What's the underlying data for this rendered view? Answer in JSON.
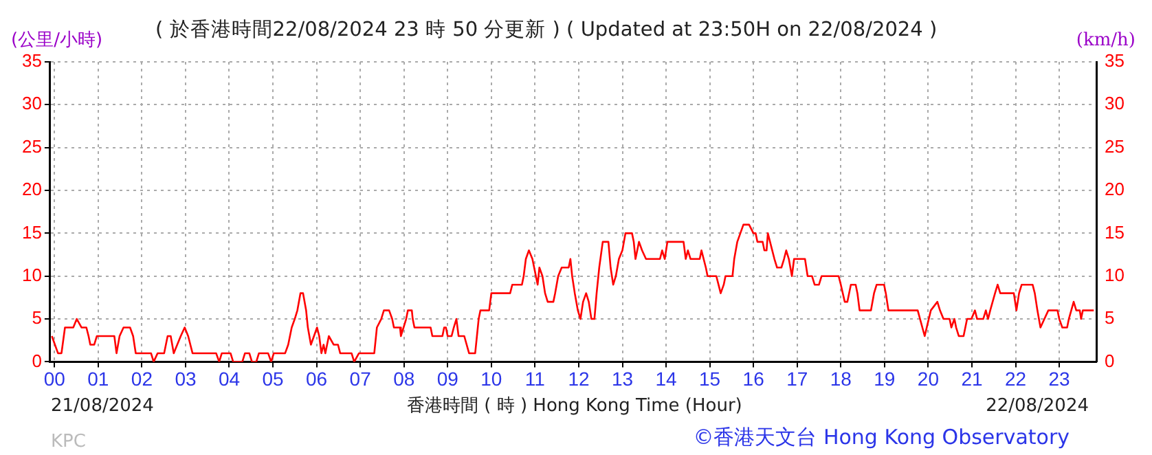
{
  "chart_data": {
    "type": "line",
    "title": "( 於香港時間22/08/2024 23 時 50 分更新 ) ( Updated at 23:50H on 22/08/2024 )",
    "xlabel": "香港時間 ( 時 ) Hong Kong Time (Hour)",
    "ylabel": "(公里/小時)",
    "y2label": "(km/h)",
    "annotations": [
      "21/08/2024",
      "22/08/2024",
      "KPC",
      "©香港天文台 Hong Kong Observatory"
    ],
    "x": [
      -0.06,
      0.08,
      0.16,
      0.24,
      0.43,
      0.51,
      0.62,
      0.73,
      0.78,
      0.82,
      0.91,
      0.97,
      1.37,
      1.42,
      1.49,
      1.58,
      1.73,
      1.8,
      1.86,
      2.21,
      2.27,
      2.36,
      2.51,
      2.59,
      2.66,
      2.73,
      2.89,
      2.98,
      3.06,
      3.16,
      3.7,
      3.77,
      3.83,
      4.03,
      4.09,
      4.3,
      4.36,
      4.46,
      4.52,
      4.62,
      4.68,
      4.89,
      4.96,
      5.02,
      5.28,
      5.35,
      5.43,
      5.5,
      5.56,
      5.63,
      5.69,
      5.76,
      5.8,
      5.87,
      5.94,
      6.01,
      6.06,
      6.11,
      6.16,
      6.2,
      6.28,
      6.39,
      6.49,
      6.54,
      6.8,
      6.86,
      6.97,
      7.32,
      7.38,
      7.48,
      7.54,
      7.66,
      7.73,
      7.77,
      7.91,
      7.93,
      7.99,
      8.05,
      8.09,
      8.18,
      8.2,
      8.24,
      8.61,
      8.65,
      8.88,
      8.92,
      8.96,
      9.0,
      9.09,
      9.14,
      9.2,
      9.25,
      9.38,
      9.49,
      9.63,
      9.67,
      9.71,
      9.75,
      9.95,
      10.0,
      10.43,
      10.48,
      10.7,
      10.74,
      10.79,
      10.86,
      10.94,
      11.02,
      11.06,
      11.1,
      11.17,
      11.23,
      11.29,
      11.42,
      11.46,
      11.53,
      11.61,
      11.77,
      11.81,
      11.85,
      11.91,
      11.98,
      12.04,
      12.1,
      12.17,
      12.23,
      12.29,
      12.36,
      12.41,
      12.47,
      12.55,
      12.68,
      12.73,
      12.79,
      12.85,
      12.92,
      13.0,
      13.07,
      13.22,
      13.26,
      13.3,
      13.38,
      13.45,
      13.54,
      13.86,
      13.91,
      13.97,
      14.03,
      14.4,
      14.45,
      14.5,
      14.56,
      14.77,
      14.81,
      14.91,
      14.95,
      15.15,
      15.2,
      15.25,
      15.32,
      15.36,
      15.52,
      15.56,
      15.63,
      15.7,
      15.77,
      15.9,
      16.0,
      16.05,
      16.09,
      16.21,
      16.25,
      16.3,
      16.33,
      16.38,
      16.43,
      16.48,
      16.54,
      16.64,
      16.7,
      16.75,
      16.81,
      16.88,
      16.93,
      17.18,
      17.24,
      17.34,
      17.4,
      17.5,
      17.56,
      17.95,
      18.0,
      18.09,
      18.15,
      18.23,
      18.34,
      18.38,
      18.43,
      18.69,
      18.76,
      18.82,
      18.99,
      19.03,
      19.09,
      19.76,
      19.92,
      20.06,
      20.21,
      20.27,
      20.35,
      20.49,
      20.53,
      20.6,
      20.64,
      20.7,
      20.81,
      20.89,
      20.99,
      21.07,
      21.12,
      21.26,
      21.32,
      21.37,
      21.42,
      21.53,
      21.59,
      21.65,
      21.96,
      22.02,
      22.08,
      22.14,
      22.39,
      22.44,
      22.5,
      22.57,
      22.66,
      22.75,
      22.96,
      23.0,
      23.07,
      23.18,
      23.22,
      23.33,
      23.39,
      23.47,
      23.5,
      23.54,
      23.79
    ],
    "series": [
      {
        "color": "#ff0000",
        "values": [
          3,
          1,
          1,
          4,
          4,
          5,
          4,
          4,
          3,
          2,
          2,
          3,
          3,
          1,
          3,
          4,
          4,
          3,
          1,
          1,
          0,
          1,
          1,
          3,
          3,
          1,
          3,
          4,
          3,
          1,
          1,
          0,
          1,
          1,
          0,
          0,
          1,
          1,
          0,
          0,
          1,
          1,
          0,
          1,
          1,
          2,
          4,
          5,
          6,
          8,
          8,
          6,
          4,
          2,
          3,
          4,
          3,
          1,
          2,
          1,
          3,
          2,
          2,
          1,
          1,
          0,
          1,
          1,
          4,
          5,
          6,
          6,
          5,
          4,
          4,
          3,
          4,
          5,
          6,
          6,
          5,
          4,
          4,
          3,
          3,
          4,
          4,
          3,
          3,
          4,
          5,
          3,
          3,
          1,
          1,
          3,
          5,
          6,
          6,
          8,
          8,
          9,
          9,
          10,
          12,
          13,
          12,
          10,
          9,
          11,
          10,
          8,
          7,
          7,
          8,
          10,
          11,
          11,
          12,
          10,
          8,
          6,
          5,
          7,
          8,
          7,
          5,
          5,
          8,
          11,
          14,
          14,
          11,
          9,
          10,
          12,
          13,
          15,
          15,
          14,
          12,
          14,
          13,
          12,
          12,
          13,
          12,
          14,
          14,
          12,
          13,
          12,
          12,
          13,
          11,
          10,
          10,
          9,
          8,
          9,
          10,
          10,
          12,
          14,
          15,
          16,
          16,
          15,
          15,
          14,
          14,
          13,
          13,
          15,
          14,
          13,
          12,
          11,
          11,
          12,
          13,
          12,
          10,
          12,
          12,
          10,
          10,
          9,
          9,
          10,
          10,
          9,
          7,
          7,
          9,
          9,
          8,
          6,
          6,
          8,
          9,
          9,
          8,
          6,
          6,
          3,
          6,
          7,
          6,
          5,
          5,
          4,
          5,
          4,
          3,
          3,
          5,
          5,
          6,
          5,
          5,
          6,
          5,
          6,
          8,
          9,
          8,
          8,
          6,
          8,
          9,
          9,
          8,
          6,
          4,
          5,
          6,
          6,
          5,
          4,
          4,
          5,
          7,
          6,
          6,
          5,
          6,
          6
        ]
      }
    ],
    "xlim": [
      -0.1,
      23.85
    ],
    "xticks": [
      {
        "value": 0,
        "label": "00"
      },
      {
        "value": 1,
        "label": "01"
      },
      {
        "value": 2,
        "label": "02"
      },
      {
        "value": 3,
        "label": "03"
      },
      {
        "value": 4,
        "label": "04"
      },
      {
        "value": 5,
        "label": "05"
      },
      {
        "value": 6,
        "label": "06"
      },
      {
        "value": 7,
        "label": "07"
      },
      {
        "value": 8,
        "label": "08"
      },
      {
        "value": 9,
        "label": "09"
      },
      {
        "value": 10,
        "label": "10"
      },
      {
        "value": 11,
        "label": "11"
      },
      {
        "value": 12,
        "label": "12"
      },
      {
        "value": 13,
        "label": "13"
      },
      {
        "value": 14,
        "label": "14"
      },
      {
        "value": 15,
        "label": "15"
      },
      {
        "value": 16,
        "label": "16"
      },
      {
        "value": 17,
        "label": "17"
      },
      {
        "value": 18,
        "label": "18"
      },
      {
        "value": 19,
        "label": "19"
      },
      {
        "value": 20,
        "label": "20"
      },
      {
        "value": 21,
        "label": "21"
      },
      {
        "value": 22,
        "label": "22"
      },
      {
        "value": 23,
        "label": "23"
      }
    ],
    "ylim": [
      0,
      35
    ],
    "yticks": [
      0,
      5,
      10,
      15,
      20,
      25,
      30,
      35
    ],
    "y2lim": [
      0,
      35
    ],
    "y2ticks": [
      0,
      5,
      10,
      15,
      20,
      25,
      30,
      35
    ],
    "grid": true,
    "legend": false,
    "marker": "none",
    "line_style": "solid"
  }
}
